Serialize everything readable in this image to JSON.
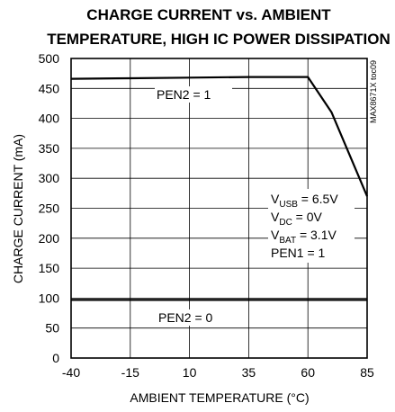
{
  "chart_data": {
    "type": "line",
    "title_lines": [
      "CHARGE CURRENT vs. AMBIENT",
      "TEMPERATURE, HIGH IC POWER DISSIPATION"
    ],
    "xlabel": "AMBIENT TEMPERATURE (°C)",
    "ylabel": "CHARGE CURRENT (mA)",
    "xlim": [
      -40,
      85
    ],
    "ylim": [
      0,
      500
    ],
    "xticks": [
      -40,
      -15,
      10,
      35,
      60,
      85
    ],
    "yticks": [
      0,
      50,
      100,
      150,
      200,
      250,
      300,
      350,
      400,
      450,
      500
    ],
    "grid": true,
    "part_number": "MAX8671X toc09",
    "series": [
      {
        "name": "PEN2 = 1",
        "points": [
          [
            -40,
            466
          ],
          [
            -15,
            467
          ],
          [
            10,
            468
          ],
          [
            35,
            469
          ],
          [
            60,
            469
          ],
          [
            70,
            410
          ],
          [
            85,
            270
          ]
        ]
      },
      {
        "name": "PEN2 = 0",
        "points": [
          [
            -40,
            97
          ],
          [
            85,
            97
          ]
        ]
      }
    ],
    "annotations": [
      {
        "id": "pen2_1",
        "text": "PEN2 = 1"
      },
      {
        "id": "pen2_0",
        "text": "PEN2 = 0"
      },
      {
        "id": "vusb",
        "main": "V",
        "sub": "USB",
        "rest": " = 6.5V"
      },
      {
        "id": "vdc",
        "main": "V",
        "sub": "DC",
        "rest": " = 0V"
      },
      {
        "id": "vbat",
        "main": "V",
        "sub": "BAT",
        "rest": " = 3.1V"
      },
      {
        "id": "pen1",
        "text": "PEN1 = 1"
      }
    ]
  }
}
